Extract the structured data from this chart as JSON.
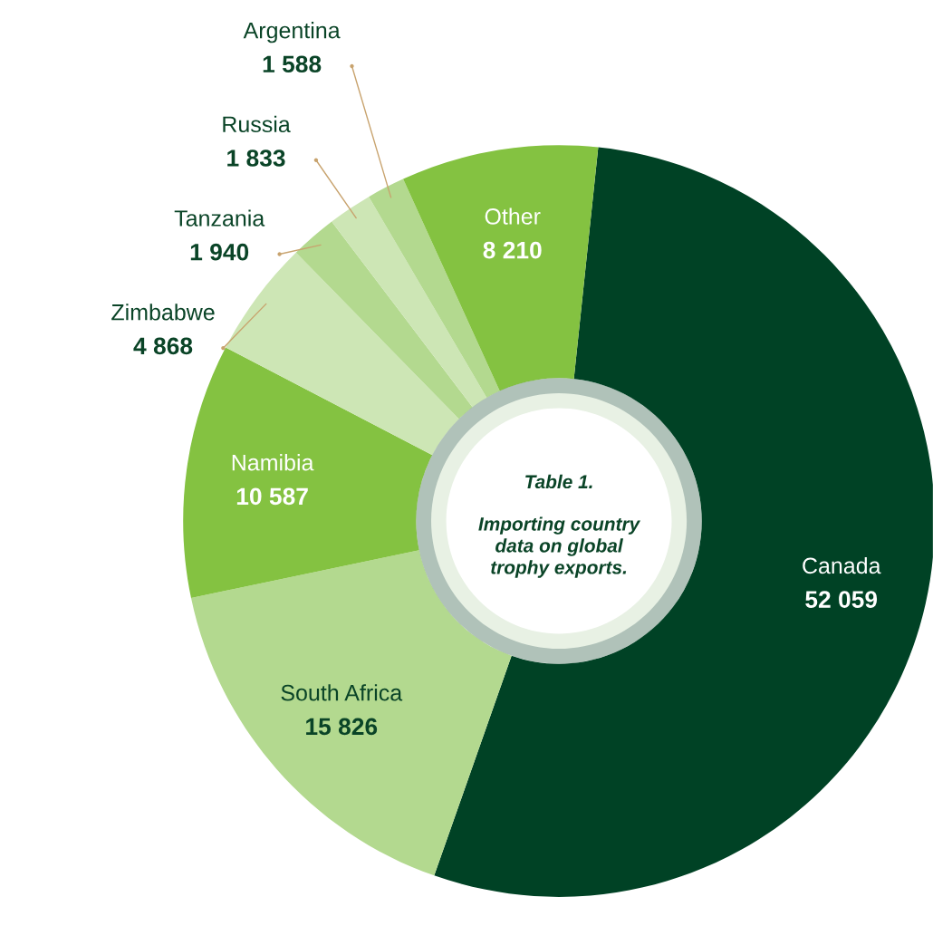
{
  "chart_data": {
    "type": "donut",
    "title": "Table 1.",
    "subtitle": "Importing country\ndata on global\ntrophy exports.",
    "categories": [
      "Canada",
      "South Africa",
      "Namibia",
      "Zimbabwe",
      "Tanzania",
      "Russia",
      "Argentina",
      "Other"
    ],
    "values": [
      52059,
      15826,
      10587,
      4868,
      1940,
      1833,
      1588,
      8210
    ],
    "value_labels": [
      "52 059",
      "15 826",
      "10 587",
      "4 868",
      "1 940",
      "1 833",
      "1 588",
      "8 210"
    ],
    "colors": [
      "#004225",
      "#b3d98f",
      "#84c241",
      "#cde6b5",
      "#b3d98f",
      "#cde6b5",
      "#b3d98f",
      "#84c241"
    ],
    "legend": false
  }
}
